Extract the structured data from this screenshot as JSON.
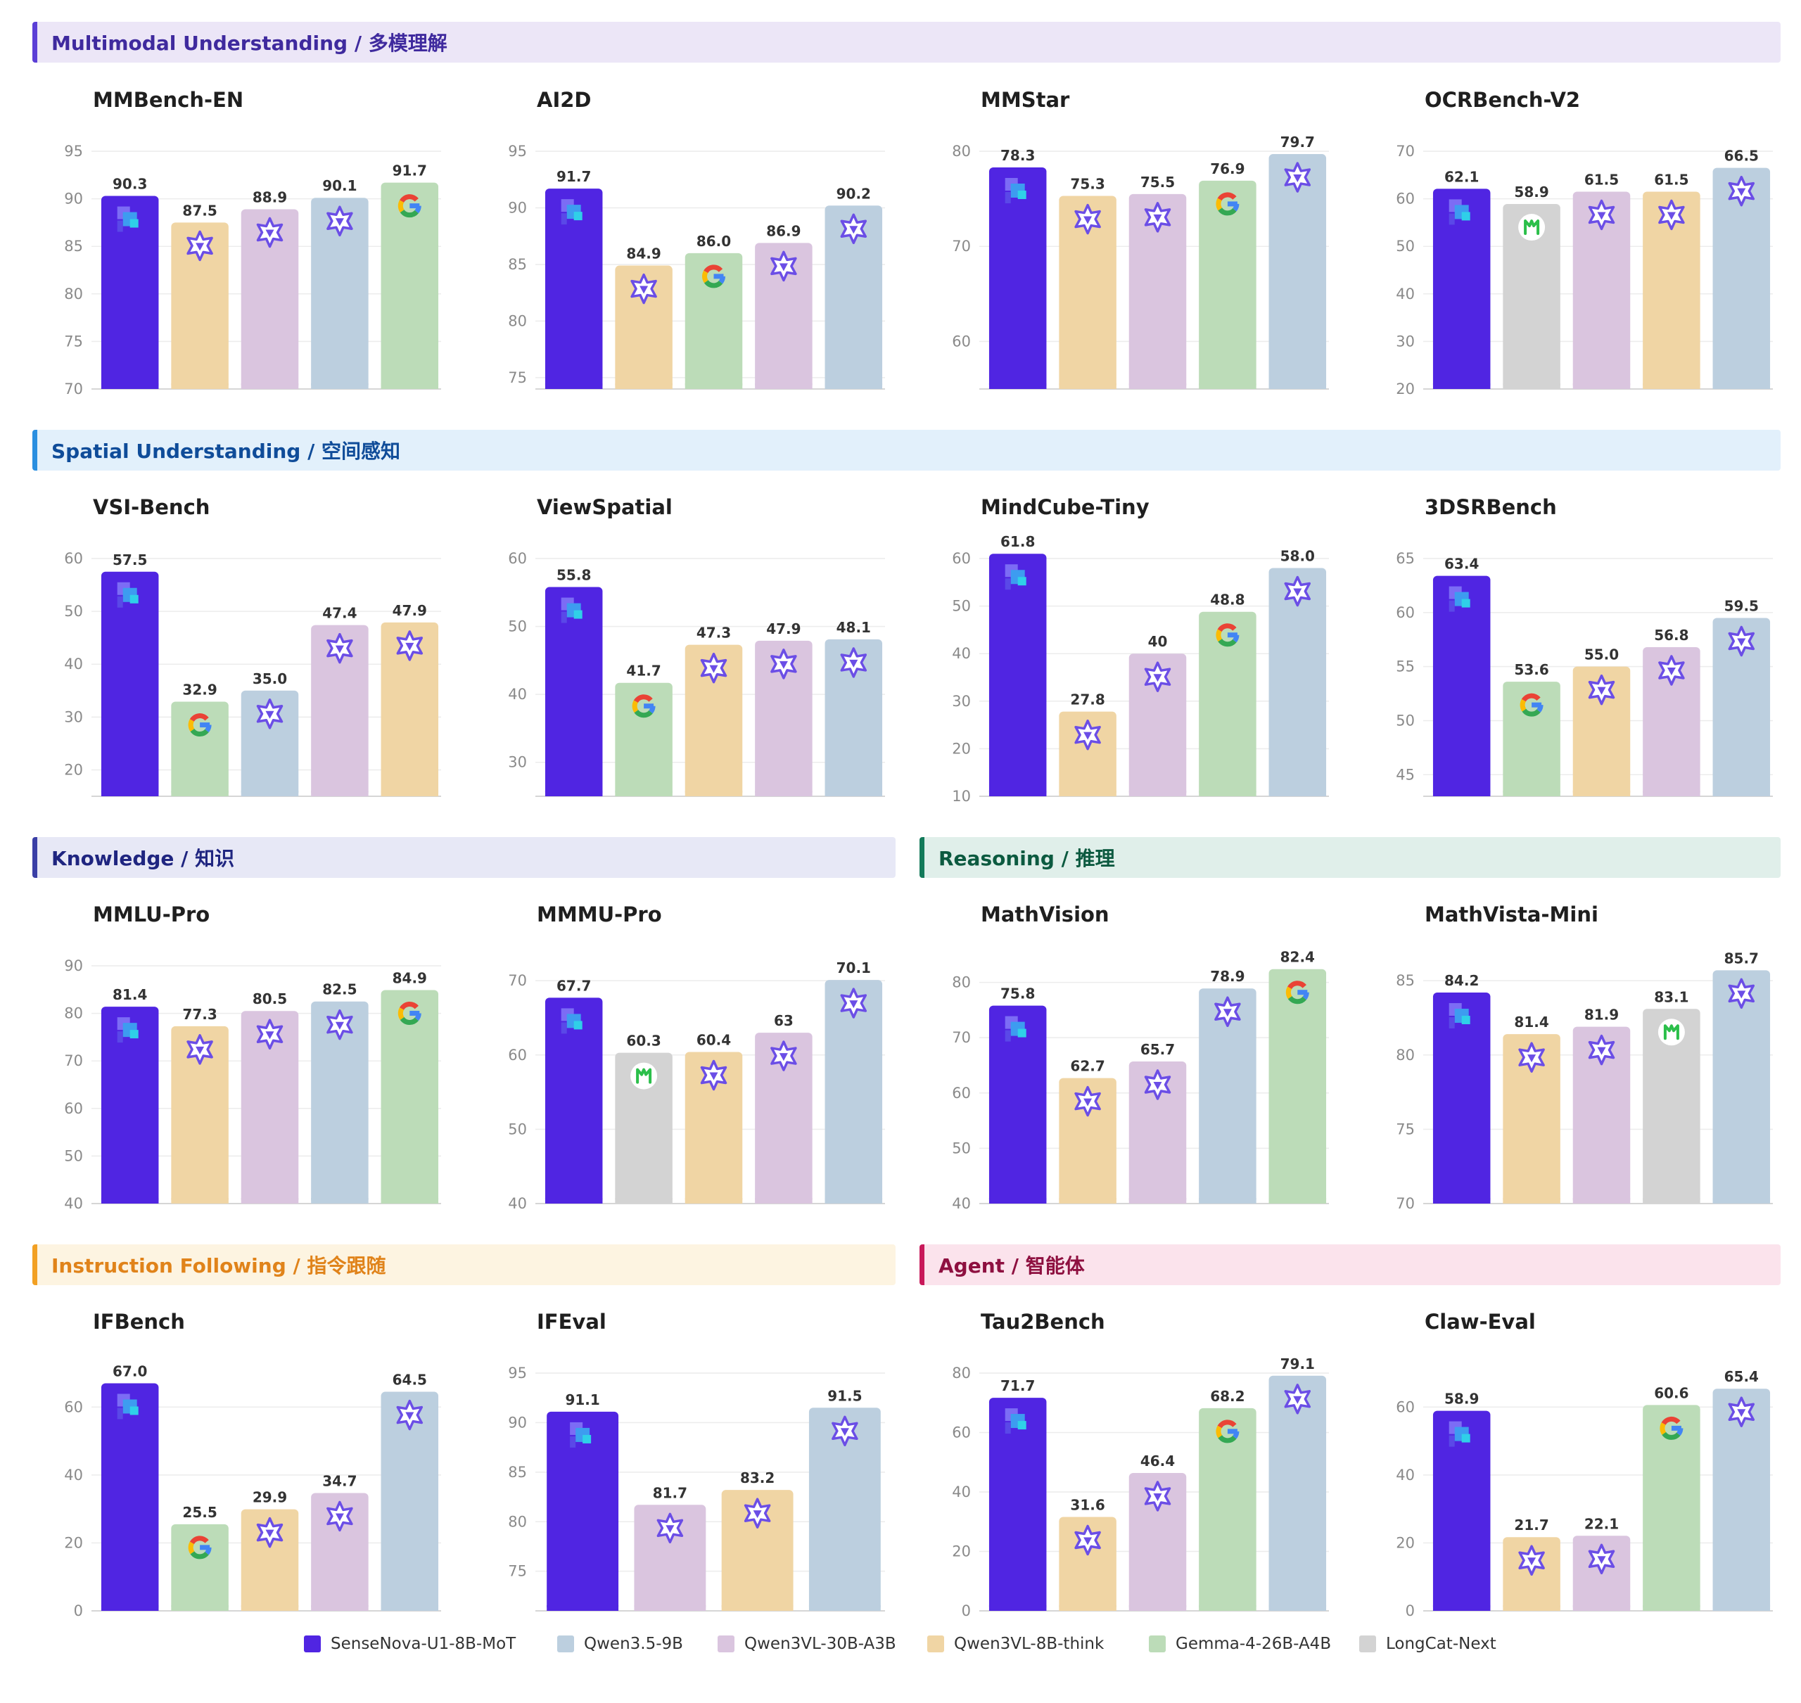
{
  "colors": {
    "SenseNova-U1-8B-MoT": "#5025e2",
    "Qwen3.5-9B": "#bccfdf",
    "Qwen3VL-30B-A3B": "#dac5df",
    "Qwen3VL-8B-think": "#f0d5a4",
    "Gemma-4-26B-A4B": "#bcdcb8",
    "LongCat-Next": "#d3d3d3"
  },
  "sections": [
    {
      "title": "Multimodal Understanding / 多模理解",
      "accent": "#5b3fd6",
      "bg": "#ece6f7",
      "text": "#3f2a9e"
    },
    {
      "title": "Spatial Understanding / 空间感知",
      "accent": "#2a8fe0",
      "bg": "#e2f0fb",
      "text": "#0f4c99"
    },
    {
      "title": "Knowledge / 知识",
      "accent": "#3a3fa6",
      "bg": "#e7e8f6",
      "text": "#1f2580"
    },
    {
      "title": "Reasoning / 推理",
      "accent": "#137a5a",
      "bg": "#e0efea",
      "text": "#0c5a40"
    },
    {
      "title": "Instruction Following / 指令跟随",
      "accent": "#f2a023",
      "bg": "#fdf4e1",
      "text": "#e0831a"
    },
    {
      "title": "Agent / 智能体",
      "accent": "#c8195a",
      "bg": "#fbe3ec",
      "text": "#8e1040"
    }
  ],
  "legend": [
    {
      "label": "SenseNova-U1-8B-MoT",
      "color": "#5025e2"
    },
    {
      "label": "Qwen3.5-9B",
      "color": "#bccfdf"
    },
    {
      "label": "Qwen3VL-30B-A3B",
      "color": "#dac5df"
    },
    {
      "label": "Qwen3VL-8B-think",
      "color": "#f0d5a4"
    },
    {
      "label": "Gemma-4-26B-A4B",
      "color": "#bcdcb8"
    },
    {
      "label": "LongCat-Next",
      "color": "#d3d3d3"
    }
  ],
  "chart_data": [
    {
      "type": "bar",
      "title": "MMBench-EN",
      "ylim": [
        70,
        95
      ],
      "yticks": [
        70,
        75,
        80,
        85,
        90,
        95
      ],
      "bars": [
        {
          "model": "SenseNova-U1-8B-MoT",
          "value": 90.3,
          "label": "90.3",
          "icon": "sensenova-icon"
        },
        {
          "model": "Qwen3VL-8B-think",
          "value": 87.5,
          "label": "87.5",
          "icon": "qwen-icon"
        },
        {
          "model": "Qwen3VL-30B-A3B",
          "value": 88.9,
          "label": "88.9",
          "icon": "qwen-icon"
        },
        {
          "model": "Qwen3.5-9B",
          "value": 90.1,
          "label": "90.1",
          "icon": "qwen-icon"
        },
        {
          "model": "Gemma-4-26B-A4B",
          "value": 91.7,
          "label": "91.7",
          "icon": "google-icon"
        }
      ]
    },
    {
      "type": "bar",
      "title": "AI2D",
      "ylim": [
        74,
        95
      ],
      "yticks": [
        75,
        80,
        85,
        90,
        95
      ],
      "bars": [
        {
          "model": "SenseNova-U1-8B-MoT",
          "value": 91.7,
          "label": "91.7",
          "icon": "sensenova-icon"
        },
        {
          "model": "Qwen3VL-8B-think",
          "value": 84.9,
          "label": "84.9",
          "icon": "qwen-icon"
        },
        {
          "model": "Gemma-4-26B-A4B",
          "value": 86.0,
          "label": "86.0",
          "icon": "google-icon"
        },
        {
          "model": "Qwen3VL-30B-A3B",
          "value": 86.9,
          "label": "86.9",
          "icon": "qwen-icon"
        },
        {
          "model": "Qwen3.5-9B",
          "value": 90.2,
          "label": "90.2",
          "icon": "qwen-icon"
        }
      ]
    },
    {
      "type": "bar",
      "title": "MMStar",
      "ylim": [
        55,
        80
      ],
      "yticks": [
        60,
        70,
        80
      ],
      "bars": [
        {
          "model": "SenseNova-U1-8B-MoT",
          "value": 78.3,
          "label": "78.3",
          "icon": "sensenova-icon"
        },
        {
          "model": "Qwen3VL-8B-think",
          "value": 75.3,
          "label": "75.3",
          "icon": "qwen-icon"
        },
        {
          "model": "Qwen3VL-30B-A3B",
          "value": 75.5,
          "label": "75.5",
          "icon": "qwen-icon"
        },
        {
          "model": "Gemma-4-26B-A4B",
          "value": 76.9,
          "label": "76.9",
          "icon": "google-icon"
        },
        {
          "model": "Qwen3.5-9B",
          "value": 79.7,
          "label": "79.7",
          "icon": "qwen-icon"
        }
      ]
    },
    {
      "type": "bar",
      "title": "OCRBench-V2",
      "ylim": [
        20,
        70
      ],
      "yticks": [
        20,
        30,
        40,
        50,
        60,
        70
      ],
      "bars": [
        {
          "model": "SenseNova-U1-8B-MoT",
          "value": 62.1,
          "label": "62.1",
          "icon": "sensenova-icon"
        },
        {
          "model": "LongCat-Next",
          "value": 58.9,
          "label": "58.9",
          "icon": "longcat-icon"
        },
        {
          "model": "Qwen3VL-30B-A3B",
          "value": 61.5,
          "label": "61.5",
          "icon": "qwen-icon"
        },
        {
          "model": "Qwen3VL-8B-think",
          "value": 61.5,
          "label": "61.5",
          "icon": "qwen-icon"
        },
        {
          "model": "Qwen3.5-9B",
          "value": 66.5,
          "label": "66.5",
          "icon": "qwen-icon"
        }
      ]
    },
    {
      "type": "bar",
      "title": "VSI-Bench",
      "ylim": [
        15,
        60
      ],
      "yticks": [
        20,
        30,
        40,
        50,
        60
      ],
      "bars": [
        {
          "model": "SenseNova-U1-8B-MoT",
          "value": 57.5,
          "label": "57.5",
          "icon": "sensenova-icon"
        },
        {
          "model": "Gemma-4-26B-A4B",
          "value": 32.9,
          "label": "32.9",
          "icon": "google-icon"
        },
        {
          "model": "Qwen3.5-9B",
          "value": 35.0,
          "label": "35.0",
          "icon": "qwen-icon"
        },
        {
          "model": "Qwen3VL-30B-A3B",
          "value": 47.4,
          "label": "47.4",
          "icon": "qwen-icon"
        },
        {
          "model": "Qwen3VL-8B-think",
          "value": 47.9,
          "label": "47.9",
          "icon": "qwen-icon"
        }
      ]
    },
    {
      "type": "bar",
      "title": "ViewSpatial",
      "ylim": [
        25,
        60
      ],
      "yticks": [
        30,
        40,
        50,
        60
      ],
      "bars": [
        {
          "model": "SenseNova-U1-8B-MoT",
          "value": 55.8,
          "label": "55.8",
          "icon": "sensenova-icon"
        },
        {
          "model": "Gemma-4-26B-A4B",
          "value": 41.7,
          "label": "41.7",
          "icon": "google-icon"
        },
        {
          "model": "Qwen3VL-8B-think",
          "value": 47.3,
          "label": "47.3",
          "icon": "qwen-icon"
        },
        {
          "model": "Qwen3VL-30B-A3B",
          "value": 47.9,
          "label": "47.9",
          "icon": "qwen-icon"
        },
        {
          "model": "Qwen3.5-9B",
          "value": 48.1,
          "label": "48.1",
          "icon": "qwen-icon"
        }
      ]
    },
    {
      "type": "bar",
      "title": "MindCube-Tiny",
      "ylim": [
        10,
        60
      ],
      "yticks": [
        10,
        20,
        30,
        40,
        50,
        60
      ],
      "bars": [
        {
          "model": "SenseNova-U1-8B-MoT",
          "value": 61.8,
          "label": "61.8",
          "icon": "sensenova-icon"
        },
        {
          "model": "Qwen3VL-8B-think",
          "value": 27.8,
          "label": "27.8",
          "icon": "qwen-icon"
        },
        {
          "model": "Qwen3VL-30B-A3B",
          "value": 40,
          "label": "40",
          "icon": "qwen-icon"
        },
        {
          "model": "Gemma-4-26B-A4B",
          "value": 48.8,
          "label": "48.8",
          "icon": "google-icon"
        },
        {
          "model": "Qwen3.5-9B",
          "value": 58.0,
          "label": "58.0",
          "icon": "qwen-icon"
        }
      ]
    },
    {
      "type": "bar",
      "title": "3DSRBench",
      "ylim": [
        43,
        65
      ],
      "yticks": [
        45,
        50,
        55,
        60,
        65
      ],
      "bars": [
        {
          "model": "SenseNova-U1-8B-MoT",
          "value": 63.4,
          "label": "63.4",
          "icon": "sensenova-icon"
        },
        {
          "model": "Gemma-4-26B-A4B",
          "value": 53.6,
          "label": "53.6",
          "icon": "google-icon"
        },
        {
          "model": "Qwen3VL-8B-think",
          "value": 55.0,
          "label": "55.0",
          "icon": "qwen-icon"
        },
        {
          "model": "Qwen3VL-30B-A3B",
          "value": 56.8,
          "label": "56.8",
          "icon": "qwen-icon"
        },
        {
          "model": "Qwen3.5-9B",
          "value": 59.5,
          "label": "59.5",
          "icon": "qwen-icon"
        }
      ]
    },
    {
      "type": "bar",
      "title": "MMLU-Pro",
      "ylim": [
        40,
        90
      ],
      "yticks": [
        40,
        50,
        60,
        70,
        80,
        90
      ],
      "bars": [
        {
          "model": "SenseNova-U1-8B-MoT",
          "value": 81.4,
          "label": "81.4",
          "icon": "sensenova-icon"
        },
        {
          "model": "Qwen3VL-8B-think",
          "value": 77.3,
          "label": "77.3",
          "icon": "qwen-icon"
        },
        {
          "model": "Qwen3VL-30B-A3B",
          "value": 80.5,
          "label": "80.5",
          "icon": "qwen-icon"
        },
        {
          "model": "Qwen3.5-9B",
          "value": 82.5,
          "label": "82.5",
          "icon": "qwen-icon"
        },
        {
          "model": "Gemma-4-26B-A4B",
          "value": 84.9,
          "label": "84.9",
          "icon": "google-icon"
        }
      ]
    },
    {
      "type": "bar",
      "title": "MMMU-Pro",
      "ylim": [
        40,
        72
      ],
      "yticks": [
        40,
        50,
        60,
        70
      ],
      "bars": [
        {
          "model": "SenseNova-U1-8B-MoT",
          "value": 67.7,
          "label": "67.7",
          "icon": "sensenova-icon"
        },
        {
          "model": "LongCat-Next",
          "value": 60.3,
          "label": "60.3",
          "icon": "longcat-icon"
        },
        {
          "model": "Qwen3VL-8B-think",
          "value": 60.4,
          "label": "60.4",
          "icon": "qwen-icon"
        },
        {
          "model": "Qwen3VL-30B-A3B",
          "value": 63,
          "label": "63",
          "icon": "qwen-icon"
        },
        {
          "model": "Qwen3.5-9B",
          "value": 70.1,
          "label": "70.1",
          "icon": "qwen-icon"
        }
      ]
    },
    {
      "type": "bar",
      "title": "MathVision",
      "ylim": [
        40,
        83
      ],
      "yticks": [
        40,
        50,
        60,
        70,
        80
      ],
      "bars": [
        {
          "model": "SenseNova-U1-8B-MoT",
          "value": 75.8,
          "label": "75.8",
          "icon": "sensenova-icon"
        },
        {
          "model": "Qwen3VL-8B-think",
          "value": 62.7,
          "label": "62.7",
          "icon": "qwen-icon"
        },
        {
          "model": "Qwen3VL-30B-A3B",
          "value": 65.7,
          "label": "65.7",
          "icon": "qwen-icon"
        },
        {
          "model": "Qwen3.5-9B",
          "value": 78.9,
          "label": "78.9",
          "icon": "qwen-icon"
        },
        {
          "model": "Gemma-4-26B-A4B",
          "value": 82.4,
          "label": "82.4",
          "icon": "google-icon"
        }
      ]
    },
    {
      "type": "bar",
      "title": "MathVista-Mini",
      "ylim": [
        70,
        86
      ],
      "yticks": [
        70,
        75,
        80,
        85
      ],
      "bars": [
        {
          "model": "SenseNova-U1-8B-MoT",
          "value": 84.2,
          "label": "84.2",
          "icon": "sensenova-icon"
        },
        {
          "model": "Qwen3VL-8B-think",
          "value": 81.4,
          "label": "81.4",
          "icon": "qwen-icon"
        },
        {
          "model": "Qwen3VL-30B-A3B",
          "value": 81.9,
          "label": "81.9",
          "icon": "qwen-icon"
        },
        {
          "model": "LongCat-Next",
          "value": 83.1,
          "label": "83.1",
          "icon": "longcat-icon"
        },
        {
          "model": "Qwen3.5-9B",
          "value": 85.7,
          "label": "85.7",
          "icon": "qwen-icon"
        }
      ]
    },
    {
      "type": "bar",
      "title": "IFBench",
      "ylim": [
        0,
        70
      ],
      "yticks": [
        0,
        20,
        40,
        60
      ],
      "bars": [
        {
          "model": "SenseNova-U1-8B-MoT",
          "value": 67.0,
          "label": "67.0",
          "icon": "sensenova-icon"
        },
        {
          "model": "Gemma-4-26B-A4B",
          "value": 25.5,
          "label": "25.5",
          "icon": "google-icon"
        },
        {
          "model": "Qwen3VL-8B-think",
          "value": 29.9,
          "label": "29.9",
          "icon": "qwen-icon"
        },
        {
          "model": "Qwen3VL-30B-A3B",
          "value": 34.7,
          "label": "34.7",
          "icon": "qwen-icon"
        },
        {
          "model": "Qwen3.5-9B",
          "value": 64.5,
          "label": "64.5",
          "icon": "qwen-icon"
        }
      ]
    },
    {
      "type": "bar",
      "title": "IFEval",
      "ylim": [
        71,
        95
      ],
      "yticks": [
        75,
        80,
        85,
        90,
        95
      ],
      "bars": [
        {
          "model": "SenseNova-U1-8B-MoT",
          "value": 91.1,
          "label": "91.1",
          "icon": "sensenova-icon"
        },
        {
          "model": "Qwen3VL-30B-A3B",
          "value": 81.7,
          "label": "81.7",
          "icon": "qwen-icon"
        },
        {
          "model": "Qwen3VL-8B-think",
          "value": 83.2,
          "label": "83.2",
          "icon": "qwen-icon"
        },
        {
          "model": "Qwen3.5-9B",
          "value": 91.5,
          "label": "91.5",
          "icon": "qwen-icon"
        }
      ]
    },
    {
      "type": "bar",
      "title": "Tau2Bench",
      "ylim": [
        0,
        80
      ],
      "yticks": [
        0,
        20,
        40,
        60,
        80
      ],
      "bars": [
        {
          "model": "SenseNova-U1-8B-MoT",
          "value": 71.7,
          "label": "71.7",
          "icon": "sensenova-icon"
        },
        {
          "model": "Qwen3VL-8B-think",
          "value": 31.6,
          "label": "31.6",
          "icon": "qwen-icon"
        },
        {
          "model": "Qwen3VL-30B-A3B",
          "value": 46.4,
          "label": "46.4",
          "icon": "qwen-icon"
        },
        {
          "model": "Gemma-4-26B-A4B",
          "value": 68.2,
          "label": "68.2",
          "icon": "google-icon"
        },
        {
          "model": "Qwen3.5-9B",
          "value": 79.1,
          "label": "79.1",
          "icon": "qwen-icon"
        }
      ]
    },
    {
      "type": "bar",
      "title": "Claw-Eval",
      "ylim": [
        0,
        70
      ],
      "yticks": [
        0,
        20,
        40,
        60
      ],
      "bars": [
        {
          "model": "SenseNova-U1-8B-MoT",
          "value": 58.9,
          "label": "58.9",
          "icon": "sensenova-icon"
        },
        {
          "model": "Qwen3VL-8B-think",
          "value": 21.7,
          "label": "21.7",
          "icon": "qwen-icon"
        },
        {
          "model": "Qwen3VL-30B-A3B",
          "value": 22.1,
          "label": "22.1",
          "icon": "qwen-icon"
        },
        {
          "model": "Gemma-4-26B-A4B",
          "value": 60.6,
          "label": "60.6",
          "icon": "google-icon"
        },
        {
          "model": "Qwen3.5-9B",
          "value": 65.4,
          "label": "65.4",
          "icon": "qwen-icon"
        }
      ]
    }
  ]
}
